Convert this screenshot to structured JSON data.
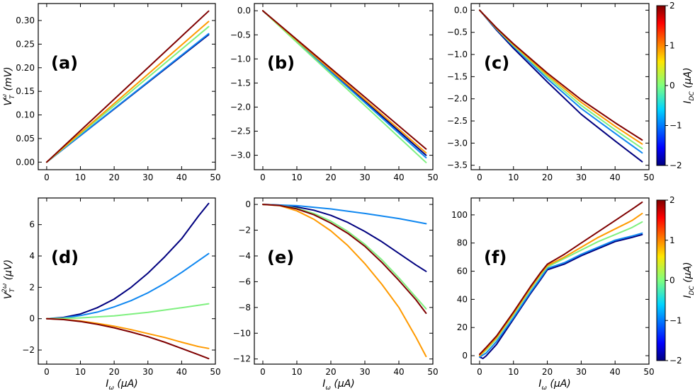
{
  "colors": {
    "navy": "#00007f",
    "blue": "#0f87f0",
    "green": "#7ff07f",
    "orange": "#ff9a00",
    "darkred": "#7f0000"
  },
  "colorbar": {
    "label": "I_DC (μA)",
    "label_main": "I",
    "label_sub": "DC",
    "label_unit": " (μA)",
    "ticks": [
      "2",
      "1",
      "0",
      "−1",
      "−2"
    ]
  },
  "chart_data": [
    {
      "id": "a",
      "panel_label": "(a)",
      "type": "line",
      "xlabel": "",
      "ylabel": "V_T^ω (mV)",
      "xlim": [
        -2.5,
        50
      ],
      "ylim": [
        -0.016,
        0.336
      ],
      "xticks": [
        0,
        10,
        20,
        30,
        40,
        50
      ],
      "yticks": [
        0.0,
        0.05,
        0.1,
        0.15,
        0.2,
        0.25,
        0.3
      ],
      "ytick_labels": [
        "0.00",
        "0.05",
        "0.10",
        "0.15",
        "0.20",
        "0.25",
        "0.30"
      ],
      "series": [
        {
          "name": "I_DC = -2",
          "color": "navy",
          "x": [
            0,
            48
          ],
          "y": [
            0,
            0.27
          ]
        },
        {
          "name": "I_DC = -1",
          "color": "blue",
          "x": [
            0,
            48
          ],
          "y": [
            0,
            0.272
          ]
        },
        {
          "name": "I_DC = 0",
          "color": "green",
          "x": [
            0,
            48
          ],
          "y": [
            0,
            0.287
          ]
        },
        {
          "name": "I_DC = 1",
          "color": "orange",
          "x": [
            0,
            48
          ],
          "y": [
            0,
            0.298
          ]
        },
        {
          "name": "I_DC = 2",
          "color": "darkred",
          "x": [
            0,
            48
          ],
          "y": [
            0,
            0.32
          ]
        }
      ]
    },
    {
      "id": "b",
      "panel_label": "(b)",
      "type": "line",
      "xlabel": "",
      "ylabel": "",
      "xlim": [
        -2.5,
        50
      ],
      "ylim": [
        -3.3,
        0.15
      ],
      "xticks": [
        0,
        10,
        20,
        30,
        40,
        50
      ],
      "yticks": [
        0.0,
        -0.5,
        -1.0,
        -1.5,
        -2.0,
        -2.5,
        -3.0
      ],
      "ytick_labels": [
        "0.0",
        "−0.5",
        "−1.0",
        "−1.5",
        "−2.0",
        "−2.5",
        "−3.0"
      ],
      "series": [
        {
          "name": "I_DC = -2",
          "color": "navy",
          "x": [
            0,
            48
          ],
          "y": [
            0,
            -3.0
          ]
        },
        {
          "name": "I_DC = -1",
          "color": "blue",
          "x": [
            0,
            48
          ],
          "y": [
            0,
            -3.05
          ]
        },
        {
          "name": "I_DC = 0",
          "color": "green",
          "x": [
            0,
            48
          ],
          "y": [
            0,
            -3.15
          ]
        },
        {
          "name": "I_DC = 1",
          "color": "orange",
          "x": [
            0,
            48
          ],
          "y": [
            0,
            -2.95
          ]
        },
        {
          "name": "I_DC = 2",
          "color": "darkred",
          "x": [
            0,
            48
          ],
          "y": [
            0,
            -2.87
          ]
        }
      ]
    },
    {
      "id": "c",
      "panel_label": "(c)",
      "type": "line",
      "xlabel": "",
      "ylabel": "",
      "xlim": [
        -2.5,
        50
      ],
      "ylim": [
        -3.6,
        0.15
      ],
      "xticks": [
        0,
        10,
        20,
        30,
        40,
        50
      ],
      "yticks": [
        0.0,
        -0.5,
        -1.0,
        -1.5,
        -2.0,
        -2.5,
        -3.0,
        -3.5
      ],
      "ytick_labels": [
        "0.0",
        "−0.5",
        "−1.0",
        "−1.5",
        "−2.0",
        "−2.5",
        "−3.0",
        "−3.5"
      ],
      "series": [
        {
          "name": "I_DC = -2",
          "color": "navy",
          "x": [
            0,
            5,
            10,
            20,
            30,
            40,
            48
          ],
          "y": [
            0,
            -0.45,
            -0.86,
            -1.62,
            -2.35,
            -2.95,
            -3.42
          ]
        },
        {
          "name": "I_DC = -1",
          "color": "blue",
          "x": [
            0,
            5,
            10,
            20,
            30,
            40,
            48
          ],
          "y": [
            0,
            -0.43,
            -0.82,
            -1.55,
            -2.22,
            -2.78,
            -3.22
          ]
        },
        {
          "name": "I_DC = 0",
          "color": "green",
          "x": [
            0,
            5,
            10,
            20,
            30,
            40,
            48
          ],
          "y": [
            0,
            -0.42,
            -0.8,
            -1.5,
            -2.15,
            -2.7,
            -3.12
          ]
        },
        {
          "name": "I_DC = 1",
          "color": "orange",
          "x": [
            0,
            5,
            10,
            20,
            30,
            40,
            48
          ],
          "y": [
            0,
            -0.41,
            -0.78,
            -1.46,
            -2.08,
            -2.62,
            -3.02
          ]
        },
        {
          "name": "I_DC = 2",
          "color": "darkred",
          "x": [
            0,
            5,
            10,
            20,
            30,
            40,
            48
          ],
          "y": [
            0,
            -0.4,
            -0.76,
            -1.42,
            -2.02,
            -2.54,
            -2.93
          ]
        }
      ]
    },
    {
      "id": "d",
      "panel_label": "(d)",
      "type": "line",
      "xlabel": "I_ω (μA)",
      "ylabel": "V_T^2ω (μV)",
      "xlim": [
        -2.5,
        50
      ],
      "ylim": [
        -2.9,
        7.7
      ],
      "xticks": [
        0,
        10,
        20,
        30,
        40,
        50
      ],
      "yticks": [
        -2,
        0,
        2,
        4,
        6
      ],
      "ytick_labels": [
        "−2",
        "0",
        "2",
        "4",
        "6"
      ],
      "series": [
        {
          "name": "I_DC = -2",
          "color": "navy",
          "x": [
            0,
            5,
            10,
            15,
            20,
            25,
            30,
            35,
            40,
            45,
            48
          ],
          "y": [
            0,
            0.08,
            0.3,
            0.7,
            1.25,
            2.0,
            2.9,
            3.95,
            5.1,
            6.55,
            7.35
          ]
        },
        {
          "name": "I_DC = -1",
          "color": "blue",
          "x": [
            0,
            5,
            10,
            15,
            20,
            25,
            30,
            35,
            40,
            45,
            48
          ],
          "y": [
            0,
            0.05,
            0.2,
            0.42,
            0.75,
            1.15,
            1.65,
            2.25,
            2.95,
            3.7,
            4.15
          ]
        },
        {
          "name": "I_DC = 0",
          "color": "green",
          "x": [
            0,
            10,
            20,
            30,
            40,
            48
          ],
          "y": [
            0,
            0.05,
            0.18,
            0.4,
            0.7,
            0.95
          ]
        },
        {
          "name": "I_DC = 1",
          "color": "orange",
          "x": [
            0,
            5,
            10,
            15,
            20,
            25,
            30,
            35,
            40,
            45,
            48
          ],
          "y": [
            0,
            -0.05,
            -0.15,
            -0.3,
            -0.48,
            -0.7,
            -0.95,
            -1.2,
            -1.5,
            -1.78,
            -1.9
          ]
        },
        {
          "name": "I_DC = 2",
          "color": "darkred",
          "x": [
            0,
            5,
            10,
            15,
            20,
            25,
            30,
            35,
            40,
            45,
            48
          ],
          "y": [
            0,
            -0.06,
            -0.18,
            -0.36,
            -0.58,
            -0.85,
            -1.15,
            -1.5,
            -1.9,
            -2.3,
            -2.55
          ]
        }
      ]
    },
    {
      "id": "e",
      "panel_label": "(e)",
      "type": "line",
      "xlabel": "I_ω (μA)",
      "ylabel": "",
      "xlim": [
        -2.5,
        50
      ],
      "ylim": [
        -12.4,
        0.5
      ],
      "xticks": [
        0,
        10,
        20,
        30,
        40,
        50
      ],
      "yticks": [
        0,
        -2,
        -4,
        -6,
        -8,
        -10,
        -12
      ],
      "ytick_labels": [
        "0",
        "−2",
        "−4",
        "−6",
        "−8",
        "−10",
        "−12"
      ],
      "series": [
        {
          "name": "I_DC = -2",
          "color": "navy",
          "x": [
            0,
            5,
            10,
            15,
            20,
            25,
            30,
            35,
            40,
            45,
            48
          ],
          "y": [
            0,
            -0.05,
            -0.2,
            -0.45,
            -0.85,
            -1.4,
            -2.1,
            -2.9,
            -3.8,
            -4.7,
            -5.2
          ]
        },
        {
          "name": "I_DC = -1",
          "color": "blue",
          "x": [
            0,
            10,
            20,
            30,
            40,
            48
          ],
          "y": [
            0,
            -0.1,
            -0.35,
            -0.7,
            -1.1,
            -1.5
          ]
        },
        {
          "name": "I_DC = 0",
          "color": "green",
          "x": [
            0,
            5,
            10,
            15,
            20,
            25,
            30,
            35,
            40,
            45,
            48
          ],
          "y": [
            0,
            -0.08,
            -0.3,
            -0.7,
            -1.3,
            -2.1,
            -3.1,
            -4.3,
            -5.7,
            -7.2,
            -8.1
          ]
        },
        {
          "name": "I_DC = 1",
          "color": "orange",
          "x": [
            0,
            5,
            10,
            15,
            20,
            25,
            30,
            35,
            40,
            45,
            48
          ],
          "y": [
            0,
            -0.1,
            -0.5,
            -1.15,
            -2.05,
            -3.2,
            -4.6,
            -6.2,
            -8.0,
            -10.3,
            -11.8
          ]
        },
        {
          "name": "I_DC = 2",
          "color": "darkred",
          "x": [
            0,
            5,
            10,
            15,
            20,
            25,
            30,
            35,
            40,
            45,
            48
          ],
          "y": [
            0,
            -0.08,
            -0.35,
            -0.8,
            -1.45,
            -2.25,
            -3.25,
            -4.5,
            -5.9,
            -7.4,
            -8.45
          ]
        }
      ]
    },
    {
      "id": "f",
      "panel_label": "(f)",
      "type": "line",
      "xlabel": "I_ω (μA)",
      "ylabel": "",
      "xlim": [
        -2.5,
        50
      ],
      "ylim": [
        -6,
        112
      ],
      "xticks": [
        0,
        10,
        20,
        30,
        40,
        50
      ],
      "yticks": [
        0,
        20,
        40,
        60,
        80,
        100
      ],
      "ytick_labels": [
        "0",
        "20",
        "40",
        "60",
        "80",
        "100"
      ],
      "series": [
        {
          "name": "I_DC = -2",
          "color": "navy",
          "x": [
            0,
            1,
            2,
            5,
            10,
            15,
            18,
            20,
            25,
            30,
            35,
            40,
            45,
            48
          ],
          "y": [
            -1,
            -2,
            0,
            8,
            26,
            44,
            54,
            61,
            65,
            71,
            76,
            81,
            84,
            86
          ]
        },
        {
          "name": "I_DC = -1",
          "color": "blue",
          "x": [
            0,
            2,
            5,
            10,
            15,
            18,
            20,
            25,
            30,
            35,
            40,
            45,
            48
          ],
          "y": [
            -1,
            2,
            10,
            27,
            45,
            55,
            62,
            66,
            72,
            77,
            82,
            85,
            87
          ]
        },
        {
          "name": "I_DC = 0",
          "color": "green",
          "x": [
            0,
            2,
            5,
            10,
            15,
            18,
            20,
            25,
            30,
            35,
            40,
            45,
            48
          ],
          "y": [
            0,
            4,
            12,
            29,
            47,
            57,
            63,
            69,
            75,
            81,
            86,
            91,
            95
          ]
        },
        {
          "name": "I_DC = 1",
          "color": "orange",
          "x": [
            0,
            2,
            5,
            10,
            15,
            18,
            20,
            25,
            30,
            35,
            40,
            45,
            48
          ],
          "y": [
            0,
            5,
            13,
            30,
            48,
            58,
            64,
            70,
            77,
            84,
            90,
            96,
            101
          ]
        },
        {
          "name": "I_DC = 2",
          "color": "darkred",
          "x": [
            0,
            2,
            5,
            10,
            15,
            18,
            20,
            25,
            30,
            35,
            40,
            45,
            48
          ],
          "y": [
            1,
            6,
            14,
            31,
            49,
            59,
            65,
            72,
            80,
            88,
            96,
            104,
            109
          ]
        }
      ]
    }
  ]
}
